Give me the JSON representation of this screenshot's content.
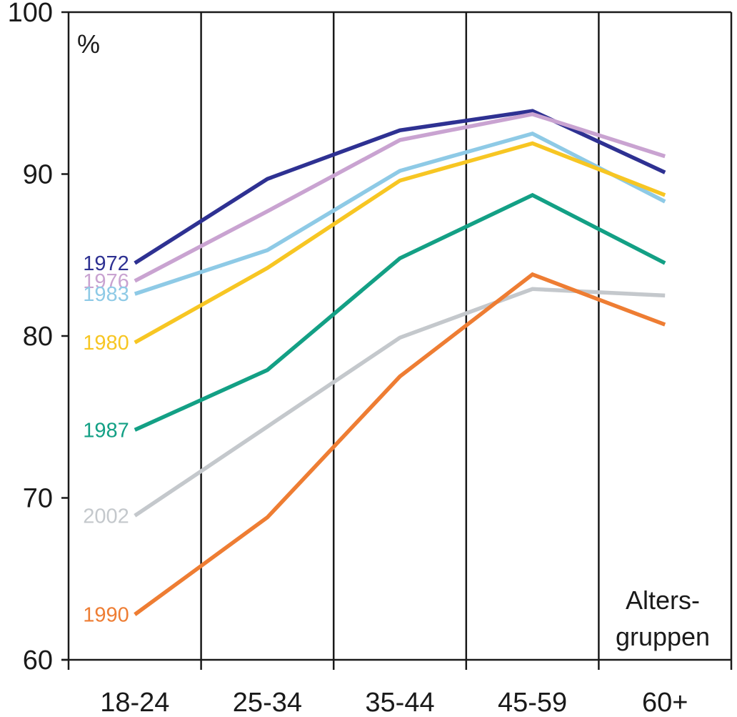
{
  "chart_data": {
    "type": "line",
    "title": "",
    "xlabel": "Alters-gruppen",
    "ylabel": "%",
    "ylim": [
      60,
      100
    ],
    "yticks": [
      60,
      70,
      80,
      90,
      100
    ],
    "categories": [
      "18-24",
      "25-34",
      "35-44",
      "45-59",
      "60+"
    ],
    "grid": "vertical lines between age groups",
    "legend": "labels at left of each line",
    "annotation": {
      "line1": "Alters-",
      "line2": "gruppen"
    },
    "series": [
      {
        "name": "1972",
        "color": "#2e3192",
        "values": [
          84.5,
          89.7,
          92.7,
          93.9,
          90.1
        ]
      },
      {
        "name": "1976",
        "color": "#c9a3d1",
        "values": [
          83.4,
          87.7,
          92.1,
          93.7,
          91.1
        ]
      },
      {
        "name": "1983",
        "color": "#8ecae6",
        "values": [
          82.6,
          85.3,
          90.2,
          92.5,
          88.3
        ]
      },
      {
        "name": "1980",
        "color": "#f7c623",
        "values": [
          79.6,
          84.2,
          89.6,
          91.9,
          88.7
        ]
      },
      {
        "name": "1987",
        "color": "#13a085",
        "values": [
          74.2,
          77.9,
          84.8,
          88.7,
          84.5
        ]
      },
      {
        "name": "2002",
        "color": "#c4c8cc",
        "values": [
          68.9,
          74.4,
          79.9,
          82.9,
          82.5
        ]
      },
      {
        "name": "1990",
        "color": "#ee7d33",
        "values": [
          62.8,
          68.8,
          77.5,
          83.8,
          80.7
        ]
      }
    ]
  }
}
